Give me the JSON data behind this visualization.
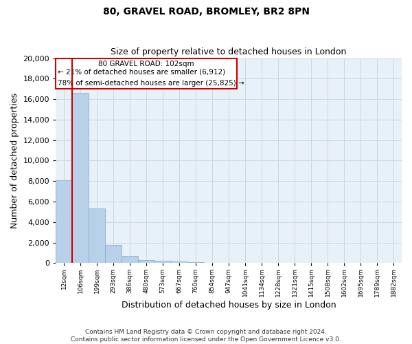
{
  "title_line1": "80, GRAVEL ROAD, BROMLEY, BR2 8PN",
  "title_line2": "Size of property relative to detached houses in London",
  "xlabel": "Distribution of detached houses by size in London",
  "ylabel": "Number of detached properties",
  "categories": [
    "12sqm",
    "106sqm",
    "199sqm",
    "293sqm",
    "386sqm",
    "480sqm",
    "573sqm",
    "667sqm",
    "760sqm",
    "854sqm",
    "947sqm",
    "1041sqm",
    "1134sqm",
    "1228sqm",
    "1321sqm",
    "1415sqm",
    "1508sqm",
    "1602sqm",
    "1695sqm",
    "1789sqm",
    "1882sqm"
  ],
  "values": [
    8100,
    16600,
    5300,
    1800,
    700,
    300,
    200,
    150,
    100,
    30,
    0,
    0,
    0,
    0,
    0,
    0,
    0,
    0,
    0,
    0,
    0
  ],
  "bar_color": "#b8d0e8",
  "bar_edge_color": "#7aaacf",
  "grid_color": "#c8d8e8",
  "bg_color": "#e8f0f8",
  "annotation_box_color": "#cc0000",
  "vline_color": "#cc0000",
  "vline_x_idx": 1,
  "annotation_text_line1": "80 GRAVEL ROAD: 102sqm",
  "annotation_text_line2": "← 21% of detached houses are smaller (6,912)",
  "annotation_text_line3": "78% of semi-detached houses are larger (25,825) →",
  "footnote_line1": "Contains HM Land Registry data © Crown copyright and database right 2024.",
  "footnote_line2": "Contains public sector information licensed under the Open Government Licence v3.0.",
  "ylim": [
    0,
    20000
  ],
  "yticks": [
    0,
    2000,
    4000,
    6000,
    8000,
    10000,
    12000,
    14000,
    16000,
    18000,
    20000
  ]
}
